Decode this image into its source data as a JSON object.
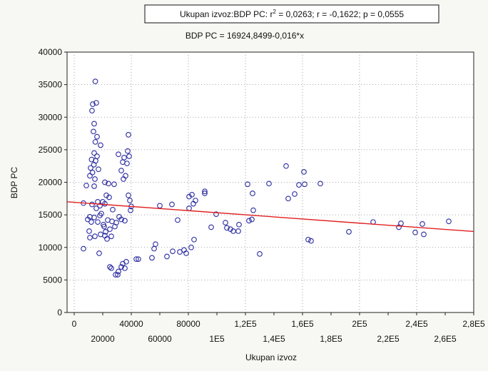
{
  "chart_data": {
    "type": "scatter",
    "title_box": "Ukupan izvoz:BDP PC:  r² = 0,0263;  r = -0,1622;  p = 0,0555",
    "title_box_prefix": "Ukupan izvoz:BDP PC:  r",
    "title_box_sup": "2",
    "title_box_suffix": " = 0,0263;  r = -0,1622;  p = 0,0555",
    "equation": "BDP PC = 16924,8499-0,016*x",
    "xlabel": "Ukupan izvoz",
    "ylabel": "BDP PC",
    "xlim": [
      -5000,
      280000
    ],
    "ylim": [
      0,
      40000
    ],
    "x_ticks_upper": [
      {
        "v": 0,
        "label": "0"
      },
      {
        "v": 40000,
        "label": "40000"
      },
      {
        "v": 80000,
        "label": "80000"
      },
      {
        "v": 120000,
        "label": "1,2E5"
      },
      {
        "v": 160000,
        "label": "1,6E5"
      },
      {
        "v": 200000,
        "label": "2E5"
      },
      {
        "v": 240000,
        "label": "2,4E5"
      },
      {
        "v": 280000,
        "label": "2,8E5"
      }
    ],
    "x_ticks_lower": [
      {
        "v": 20000,
        "label": "20000"
      },
      {
        "v": 60000,
        "label": "60000"
      },
      {
        "v": 100000,
        "label": "1E5"
      },
      {
        "v": 140000,
        "label": "1,4E5"
      },
      {
        "v": 180000,
        "label": "1,8E5"
      },
      {
        "v": 220000,
        "label": "2,2E5"
      },
      {
        "v": 260000,
        "label": "2,6E5"
      }
    ],
    "y_ticks": [
      {
        "v": 0,
        "label": "0"
      },
      {
        "v": 5000,
        "label": "5000"
      },
      {
        "v": 10000,
        "label": "10000"
      },
      {
        "v": 15000,
        "label": "15000"
      },
      {
        "v": 20000,
        "label": "20000"
      },
      {
        "v": 25000,
        "label": "25000"
      },
      {
        "v": 30000,
        "label": "30000"
      },
      {
        "v": 35000,
        "label": "35000"
      },
      {
        "v": 40000,
        "label": "40000"
      }
    ],
    "grid": "dotted",
    "regression": {
      "intercept": 16924.8499,
      "slope": -0.016
    },
    "colors": {
      "point": "#2a2aa0",
      "line": "#e02020",
      "plot_bg": "#ffffff",
      "page_bg": "#f7f7f3"
    },
    "points": [
      [
        14800,
        35500
      ],
      [
        13000,
        32000
      ],
      [
        15500,
        32200
      ],
      [
        12500,
        31000
      ],
      [
        14000,
        29000
      ],
      [
        13500,
        27800
      ],
      [
        16000,
        27000
      ],
      [
        14800,
        26200
      ],
      [
        18500,
        25700
      ],
      [
        14000,
        24500
      ],
      [
        16000,
        24000
      ],
      [
        12200,
        23500
      ],
      [
        15000,
        23300
      ],
      [
        13800,
        22700
      ],
      [
        11500,
        22200
      ],
      [
        17000,
        22000
      ],
      [
        12800,
        21500
      ],
      [
        11000,
        21000
      ],
      [
        14500,
        20500
      ],
      [
        8500,
        19500
      ],
      [
        14000,
        19400
      ],
      [
        20000,
        17000
      ],
      [
        16500,
        17000
      ],
      [
        6500,
        16800
      ],
      [
        12500,
        16600
      ],
      [
        18000,
        16400
      ],
      [
        21500,
        16700
      ],
      [
        15500,
        16000
      ],
      [
        19000,
        15200
      ],
      [
        18000,
        14900
      ],
      [
        14000,
        14600
      ],
      [
        11000,
        14700
      ],
      [
        9500,
        14300
      ],
      [
        12000,
        13900
      ],
      [
        16500,
        13900
      ],
      [
        20500,
        13500
      ],
      [
        10500,
        12500
      ],
      [
        18500,
        12000
      ],
      [
        21500,
        11800
      ],
      [
        11000,
        11500
      ],
      [
        14500,
        11700
      ],
      [
        6500,
        9800
      ],
      [
        17500,
        9100
      ],
      [
        24000,
        19800
      ],
      [
        21500,
        20000
      ],
      [
        28000,
        19700
      ],
      [
        22500,
        18000
      ],
      [
        24500,
        17700
      ],
      [
        23500,
        14200
      ],
      [
        26500,
        14000
      ],
      [
        21000,
        13200
      ],
      [
        25000,
        12800
      ],
      [
        22000,
        12400
      ],
      [
        26000,
        11700
      ],
      [
        23000,
        11300
      ],
      [
        27000,
        15800
      ],
      [
        25000,
        7000
      ],
      [
        26000,
        6800
      ],
      [
        31000,
        6300
      ],
      [
        29000,
        5800
      ],
      [
        30500,
        5800
      ],
      [
        33000,
        7000
      ],
      [
        34000,
        7500
      ],
      [
        36500,
        7800
      ],
      [
        35500,
        6800
      ],
      [
        31000,
        24300
      ],
      [
        35000,
        23800
      ],
      [
        37500,
        24800
      ],
      [
        38500,
        24000
      ],
      [
        38000,
        27300
      ],
      [
        34000,
        23100
      ],
      [
        37000,
        22900
      ],
      [
        33000,
        21800
      ],
      [
        36000,
        21000
      ],
      [
        34500,
        20500
      ],
      [
        38000,
        18000
      ],
      [
        39000,
        17200
      ],
      [
        40000,
        16300
      ],
      [
        39500,
        15700
      ],
      [
        31500,
        14700
      ],
      [
        33000,
        14300
      ],
      [
        35500,
        14100
      ],
      [
        29500,
        13800
      ],
      [
        28500,
        13200
      ],
      [
        43500,
        8200
      ],
      [
        45000,
        8200
      ],
      [
        54500,
        8400
      ],
      [
        56000,
        9800
      ],
      [
        57000,
        10500
      ],
      [
        60000,
        16400
      ],
      [
        65000,
        8600
      ],
      [
        68500,
        16600
      ],
      [
        69000,
        9400
      ],
      [
        72500,
        14200
      ],
      [
        74000,
        9300
      ],
      [
        77000,
        9600
      ],
      [
        78500,
        9100
      ],
      [
        80500,
        17800
      ],
      [
        80500,
        16000
      ],
      [
        82500,
        18100
      ],
      [
        83500,
        16700
      ],
      [
        85000,
        17200
      ],
      [
        82000,
        10000
      ],
      [
        84000,
        11200
      ],
      [
        91500,
        18300
      ],
      [
        91500,
        18600
      ],
      [
        96000,
        13100
      ],
      [
        99500,
        15100
      ],
      [
        106000,
        13800
      ],
      [
        107000,
        13000
      ],
      [
        109500,
        12800
      ],
      [
        111500,
        12500
      ],
      [
        115500,
        13500
      ],
      [
        115000,
        12500
      ],
      [
        121500,
        19700
      ],
      [
        122500,
        14100
      ],
      [
        124500,
        14300
      ],
      [
        125000,
        18300
      ],
      [
        125500,
        15700
      ],
      [
        130000,
        9000
      ],
      [
        136500,
        19800
      ],
      [
        148500,
        22500
      ],
      [
        150000,
        17500
      ],
      [
        154500,
        18200
      ],
      [
        157500,
        19600
      ],
      [
        161000,
        21600
      ],
      [
        161500,
        19700
      ],
      [
        164000,
        11200
      ],
      [
        166000,
        11000
      ],
      [
        172500,
        19800
      ],
      [
        192500,
        12400
      ],
      [
        209500,
        13900
      ],
      [
        227500,
        13100
      ],
      [
        229000,
        13700
      ],
      [
        239000,
        12300
      ],
      [
        244000,
        13600
      ],
      [
        245000,
        12000
      ],
      [
        262500,
        14000
      ]
    ]
  }
}
